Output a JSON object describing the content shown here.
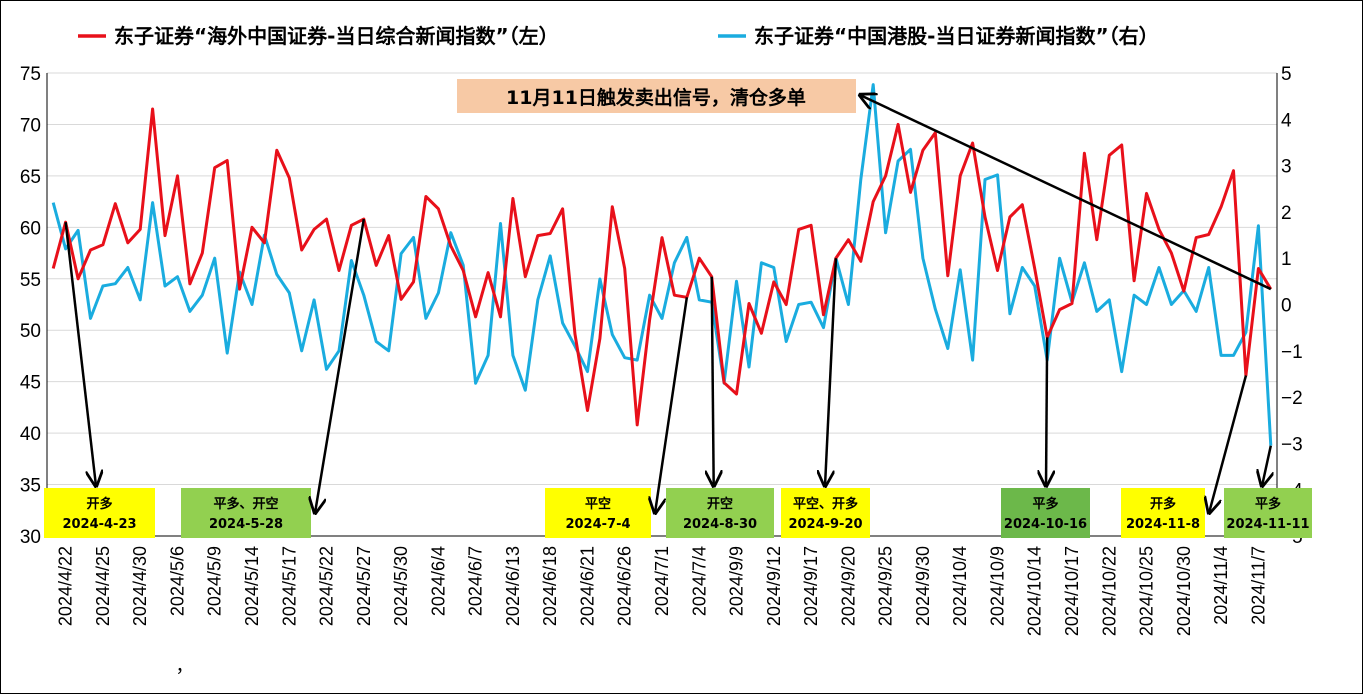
{
  "chart_data": {
    "type": "line",
    "title": "",
    "grid": true,
    "legend_position": "top",
    "series": [
      {
        "name": "东子证券“海外中国证券-当日综合新闻指数”（左）",
        "axis": "left",
        "color": "#E8101A",
        "values": [
          56,
          60.5,
          55,
          57.8,
          58.3,
          62.3,
          58.5,
          59.8,
          71.5,
          59.2,
          65,
          54.5,
          57.5,
          65.8,
          66.5,
          54,
          60,
          58.5,
          67.5,
          64.8,
          57.8,
          59.8,
          60.8,
          55.8,
          60.2,
          60.8,
          56.3,
          59.2,
          53,
          54.7,
          63,
          61.8,
          58.2,
          55.8,
          51.3,
          55.6,
          51.3,
          62.8,
          55.2,
          59.2,
          59.4,
          61.8,
          49.6,
          42.2,
          49.2,
          62,
          56,
          40.8,
          51,
          59,
          53.4,
          53.2,
          57,
          55.2,
          44.9,
          43.8,
          52.6,
          49.7,
          54.7,
          52.5,
          59.8,
          60.2,
          51.5,
          57,
          58.8,
          56.7,
          62.5,
          65,
          70,
          63.4,
          67.5,
          69.2,
          55.3,
          65,
          68.2,
          61,
          55.8,
          61,
          62.2,
          56,
          49.3,
          52,
          52.6,
          67.2,
          58.8,
          67,
          68,
          54.8,
          63.3,
          59.8,
          57.5,
          53.8,
          59,
          59.3,
          62,
          65.5,
          45.6,
          56,
          54
        ],
        "values_note": "left axis"
      },
      {
        "name": "东子证券“中国港股-当日证券新闻指数”（右）",
        "axis": "right",
        "color": "#1AACDF",
        "values": [
          2.2,
          1.2,
          1.6,
          -0.3,
          0.4,
          0.45,
          0.8,
          0.1,
          2.2,
          0.4,
          0.6,
          -0.15,
          0.2,
          1.0,
          -1.05,
          0.7,
          0,
          1.5,
          0.65,
          0.25,
          -1.0,
          0.1,
          -1.4,
          -1.0,
          0.95,
          0.2,
          -0.8,
          -1.0,
          1.1,
          1.45,
          -0.3,
          0.25,
          1.55,
          0.85,
          -1.7,
          -1.1,
          1.75,
          -1.1,
          -1.85,
          0.1,
          1.05,
          -0.4,
          -0.9,
          -1.45,
          0.55,
          -0.65,
          -1.15,
          -1.2,
          0.2,
          -0.3,
          0.9,
          1.45,
          0.1,
          0.05,
          -1.7,
          0.5,
          -1.35,
          0.9,
          0.8,
          -0.8,
          0,
          0.05,
          -0.5,
          1.0,
          0,
          2.7,
          4.75,
          1.55,
          3.1,
          3.35,
          1.0,
          -0.1,
          -0.95,
          0.75,
          -1.2,
          2.7,
          2.8,
          -0.2,
          0.8,
          0.4,
          -1.2,
          1.0,
          0.05,
          0.9,
          -0.15,
          0.1,
          -1.45,
          0.2,
          0,
          0.8,
          0,
          0.3,
          -0.15,
          0.8,
          -1.1,
          -1.1,
          -0.6,
          1.7,
          -3.05
        ],
        "values_note": "right axis"
      }
    ],
    "x_tick_labels": [
      "2024/4/22",
      "2024/4/25",
      "2024/4/30",
      "2024/5/6",
      "2024/5/9",
      "2024/5/14",
      "2024/5/17",
      "2024/5/22",
      "2024/5/27",
      "2024/5/30",
      "2024/6/4",
      "2024/6/7",
      "2024/6/13",
      "2024/6/18",
      "2024/6/21",
      "2024/6/26",
      "2024/7/1",
      "2024/7/4",
      "2024/9/9",
      "2024/9/12",
      "2024/9/17",
      "2024/9/20",
      "2024/9/25",
      "2024/9/30",
      "2024/10/4",
      "2024/10/9",
      "2024/10/14",
      "2024/10/17",
      "2024/10/22",
      "2024/10/25",
      "2024/10/30",
      "2024/11/4",
      "2024/11/7"
    ],
    "left_axis": {
      "min": 30,
      "max": 75,
      "step": 5
    },
    "right_axis": {
      "min": -5,
      "max": 5,
      "step": 1
    },
    "stray_label": "，",
    "banner": {
      "text": "11月11日触发卖出信号，清仓多单",
      "bg": "#F7C9A5"
    },
    "annotations": [
      {
        "action": "开多",
        "date": "2024-4-23",
        "bg": "#FFFF00",
        "target_index": 1
      },
      {
        "action": "平多、开空",
        "date": "2024-5-28",
        "bg": "#92D050",
        "target_index": 25
      },
      {
        "action": "平空",
        "date": "2024-7-4",
        "bg": "#FFFF00",
        "target_index": 51
      },
      {
        "action": "开空",
        "date": "2024-8-30",
        "bg": "#92D050",
        "target_index": 53
      },
      {
        "action": "平空、开多",
        "date": "2024-9-20",
        "bg": "#FFFF00",
        "target_index": 63
      },
      {
        "action": "平多",
        "date": "2024-10-16",
        "bg": "#6CB84A",
        "target_index": 80
      },
      {
        "action": "开多",
        "date": "2024-11-8",
        "bg": "#FFFF00",
        "target_index": 96
      },
      {
        "action": "平多",
        "date": "2024-11-11",
        "bg": "#92D050",
        "target_index": 98
      }
    ]
  }
}
